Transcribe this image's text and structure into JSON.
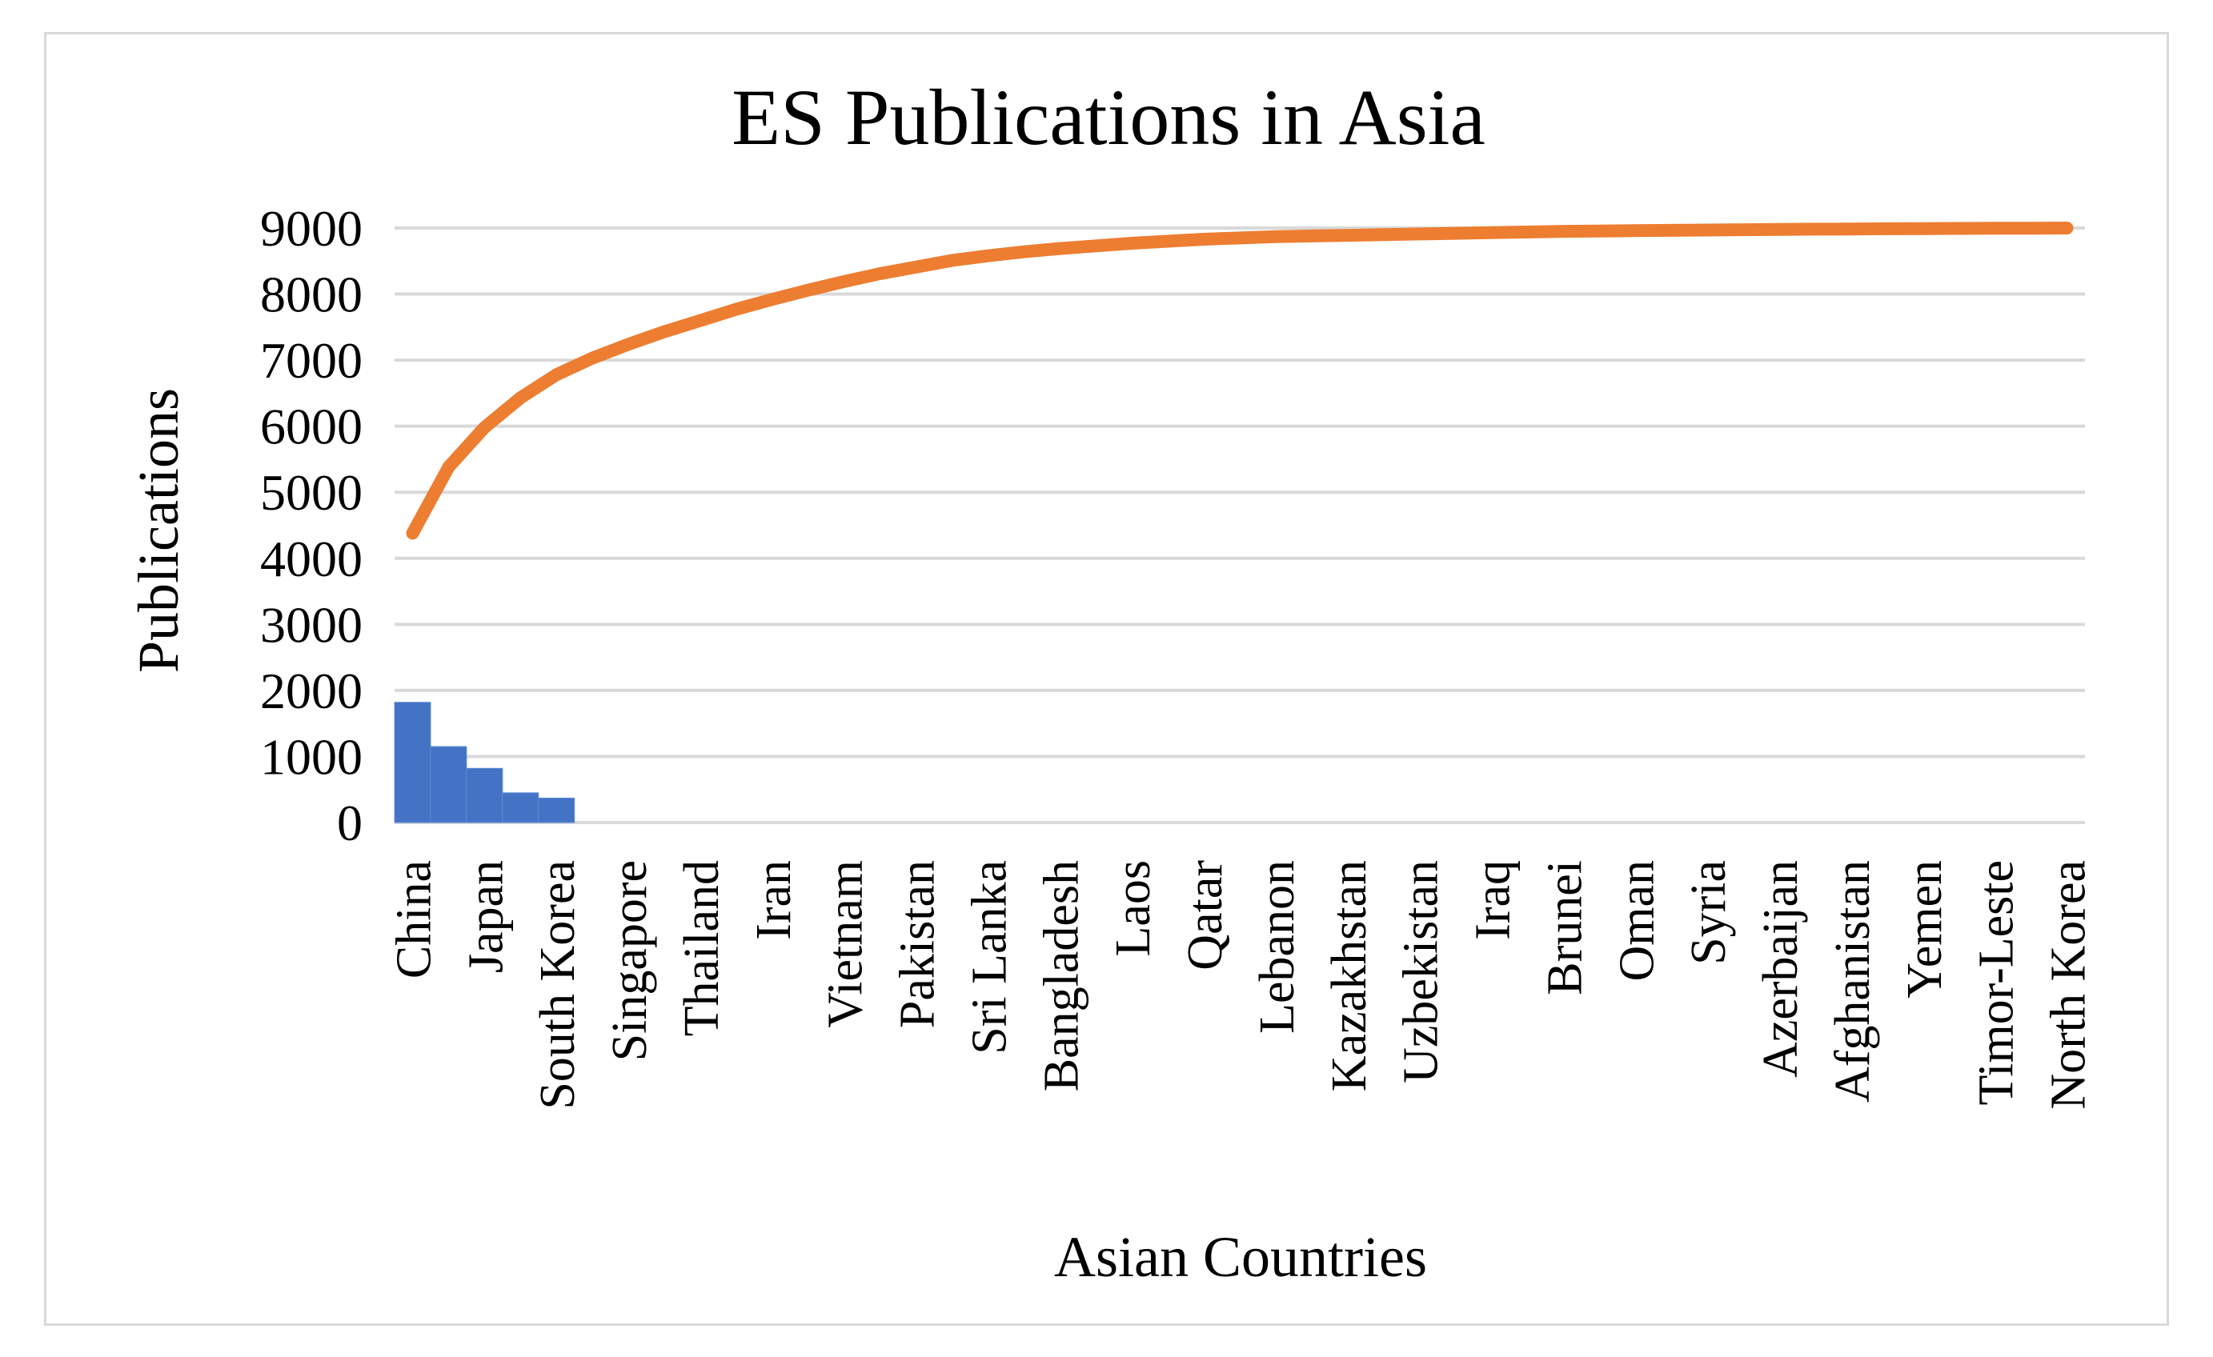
{
  "chart_data": {
    "type": "bar",
    "title": "ES Publications in Asia",
    "xlabel": "Asian Countries",
    "ylabel": "Publications",
    "ylim": [
      0,
      9000
    ],
    "yticks": [
      0,
      1000,
      2000,
      3000,
      4000,
      5000,
      6000,
      7000,
      8000,
      9000
    ],
    "grid": true,
    "legend": "none",
    "categories": [
      "China",
      "",
      "Japan",
      "",
      "South Korea",
      "",
      "Singapore",
      "",
      "Thailand",
      "",
      "Iran",
      "",
      "Vietnam",
      "",
      "Pakistan",
      "",
      "Sri Lanka",
      "",
      "Bangladesh",
      "",
      "Laos",
      "",
      "Qatar",
      "",
      "Lebanon",
      "",
      "Kazakhstan",
      "",
      "Uzbekistan",
      "",
      "Iraq",
      "",
      "Brunei",
      "",
      "Oman",
      "",
      "Syria",
      "",
      "Azerbaijan",
      "",
      "Afghanistan",
      "",
      "Yemen",
      "",
      "Timor-Leste",
      "",
      "North Korea"
    ],
    "series": [
      {
        "type": "bar",
        "color": "#4472c4",
        "values": [
          1820,
          1150,
          820,
          450,
          370,
          0,
          0,
          0,
          0,
          0,
          0,
          0,
          0,
          0,
          0,
          0,
          0,
          0,
          0,
          0,
          0,
          0,
          0,
          0,
          0,
          0,
          0,
          0,
          0,
          0,
          0,
          0,
          0,
          0,
          0,
          0,
          0,
          0,
          0,
          0,
          0,
          0,
          0,
          0,
          0,
          0,
          0
        ]
      },
      {
        "type": "line",
        "color": "#ed7d31",
        "values": [
          4380,
          5380,
          5980,
          6430,
          6780,
          7030,
          7240,
          7430,
          7600,
          7770,
          7920,
          8060,
          8190,
          8310,
          8410,
          8510,
          8580,
          8640,
          8690,
          8730,
          8770,
          8800,
          8830,
          8850,
          8870,
          8880,
          8890,
          8900,
          8910,
          8920,
          8930,
          8940,
          8950,
          8955,
          8960,
          8965,
          8970,
          8975,
          8980,
          8983,
          8986,
          8989,
          8992,
          8994,
          8996,
          8998,
          9000
        ]
      }
    ]
  },
  "colors": {
    "gridline": "#d9d9d9",
    "axis": "#d9d9d9",
    "frame": "#d9d9d9"
  }
}
